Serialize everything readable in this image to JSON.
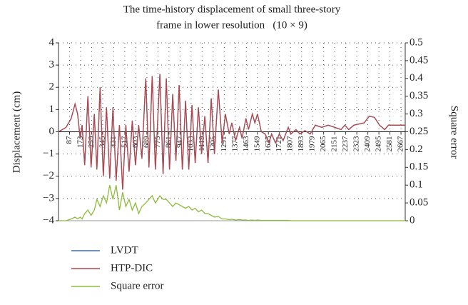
{
  "chart_data": {
    "type": "line",
    "title": [
      "The time-history displacement of small three-story",
      "frame in lower resolution   (10 × 9)"
    ],
    "y_label": "Displacement (cm)",
    "y2_label": "Square error",
    "x": [
      1,
      60,
      100,
      130,
      150,
      170,
      185,
      205,
      230,
      255,
      280,
      300,
      325,
      350,
      375,
      400,
      425,
      450,
      475,
      500,
      525,
      550,
      575,
      600,
      625,
      650,
      680,
      705,
      730,
      755,
      790,
      815,
      840,
      865,
      890,
      915,
      940,
      965,
      990,
      1015,
      1040,
      1065,
      1090,
      1115,
      1140,
      1165,
      1190,
      1215,
      1245,
      1275,
      1300,
      1330,
      1350,
      1380,
      1410,
      1430,
      1460,
      1480,
      1510,
      1530,
      1550,
      1580,
      1610,
      1640,
      1660,
      1690,
      1720,
      1750,
      1790,
      1810,
      1850,
      1880,
      1920,
      1960,
      2000,
      2050,
      2100,
      2150,
      2200,
      2230,
      2260,
      2300,
      2380,
      2420,
      2460,
      2500,
      2540,
      2570,
      2700
    ],
    "series": [
      {
        "name": "LVDT",
        "color": "#3a6ea5",
        "values": [
          0,
          0.2,
          0.6,
          1.25,
          0.8,
          -0.3,
          0.3,
          -1.5,
          1.6,
          -1.6,
          0.8,
          -1.7,
          2.0,
          -2.0,
          1.1,
          -2.1,
          1.1,
          -2.2,
          0.3,
          -2.6,
          0.3,
          -1.8,
          0.5,
          -1.5,
          0.3,
          -1.2,
          2.4,
          -1.6,
          2.5,
          -1.7,
          2.6,
          -1.9,
          2.4,
          -1.7,
          1.7,
          -1.3,
          2.1,
          -1.7,
          1.4,
          -1.7,
          1.2,
          -1.4,
          1.1,
          -1.0,
          0.7,
          -1.4,
          1.5,
          -1.0,
          1.9,
          -0.5,
          0.8,
          -0.1,
          0.4,
          -0.4,
          0.2,
          -0.3,
          0.6,
          0.1,
          0.8,
          0.4,
          0.8,
          0,
          -0.1,
          -0.5,
          -0.1,
          -0.5,
          -0.1,
          -0.4,
          0.2,
          -0.1,
          0.1,
          -0.1,
          0.05,
          -0.1,
          0.3,
          0.2,
          0.3,
          0.2,
          0.1,
          0.3,
          0.1,
          0.3,
          0.4,
          0.7,
          0.65,
          0.3,
          0.1,
          0.3,
          0.3
        ]
      },
      {
        "name": "HTP-DIC",
        "color": "#b5454a",
        "values": [
          0,
          0.2,
          0.6,
          1.25,
          0.8,
          -0.3,
          0.3,
          -1.5,
          1.6,
          -1.6,
          0.8,
          -1.7,
          2.0,
          -2.0,
          1.1,
          -2.1,
          1.1,
          -2.2,
          0.3,
          -2.6,
          0.3,
          -1.8,
          0.5,
          -1.5,
          0.3,
          -1.2,
          2.4,
          -1.6,
          2.5,
          -1.7,
          2.6,
          -1.9,
          2.4,
          -1.7,
          1.7,
          -1.3,
          2.1,
          -1.7,
          1.4,
          -1.7,
          1.2,
          -1.4,
          1.1,
          -1.0,
          0.7,
          -1.4,
          1.5,
          -1.0,
          1.9,
          -0.5,
          0.8,
          -0.1,
          0.4,
          -0.4,
          0.2,
          -0.3,
          0.6,
          0.1,
          0.8,
          0.4,
          0.8,
          0,
          -0.1,
          -0.5,
          -0.1,
          -0.5,
          -0.1,
          -0.4,
          0.2,
          -0.1,
          0.1,
          -0.1,
          0.05,
          -0.1,
          0.3,
          0.2,
          0.3,
          0.2,
          0.1,
          0.3,
          0.1,
          0.3,
          0.4,
          0.7,
          0.65,
          0.3,
          0.1,
          0.3,
          0.3
        ]
      },
      {
        "name": "Square error",
        "color": "#8dbb3c",
        "axis": "y2",
        "values": [
          0,
          0,
          0.005,
          0.01,
          0.005,
          0.01,
          0.005,
          0.02,
          0.03,
          0.015,
          0.03,
          0.06,
          0.04,
          0.07,
          0.05,
          0.1,
          0.06,
          0.1,
          0.03,
          0.08,
          0.04,
          0.06,
          0.03,
          0.05,
          0.02,
          0.04,
          0.05,
          0.06,
          0.07,
          0.05,
          0.07,
          0.06,
          0.06,
          0.05,
          0.04,
          0.05,
          0.045,
          0.04,
          0.035,
          0.04,
          0.03,
          0.035,
          0.025,
          0.03,
          0.02,
          0.02,
          0.015,
          0.01,
          0.012,
          0.005,
          0.005,
          0.003,
          0.004,
          0.002,
          0.003,
          0.002,
          0.002,
          0.001,
          0.002,
          0.001,
          0.002,
          0.001,
          0.001,
          0.001,
          0.001,
          0.001,
          0.001,
          0.001,
          0.001,
          0,
          0,
          0,
          0,
          0,
          0,
          0,
          0,
          0,
          0,
          0,
          0,
          0,
          0,
          0,
          0,
          0,
          0,
          0,
          0
        ]
      }
    ],
    "xlim": [
      1,
      2700
    ],
    "xticks": [
      87,
      173,
      259,
      345,
      431,
      517,
      603,
      689,
      775,
      861,
      947,
      1033,
      1119,
      1205,
      1291,
      1377,
      1463,
      1549,
      1635,
      1721,
      1807,
      1893,
      1979,
      2065,
      2151,
      2237,
      2323,
      2409,
      2495,
      2581,
      2667
    ],
    "ylim": [
      -4,
      4
    ],
    "yticks": [
      {
        "value": -4,
        "label": "−4"
      },
      {
        "value": -3,
        "label": "−3"
      },
      {
        "value": -2,
        "label": "−2"
      },
      {
        "value": -1,
        "label": "−1"
      },
      0,
      1,
      2,
      3,
      4
    ],
    "y2lim": [
      0,
      0.5
    ],
    "y2ticks": [
      0,
      0.05,
      0.1,
      0.15,
      0.2,
      0.25,
      0.3,
      0.35,
      0.4,
      0.45,
      0.5
    ],
    "grid": true
  }
}
